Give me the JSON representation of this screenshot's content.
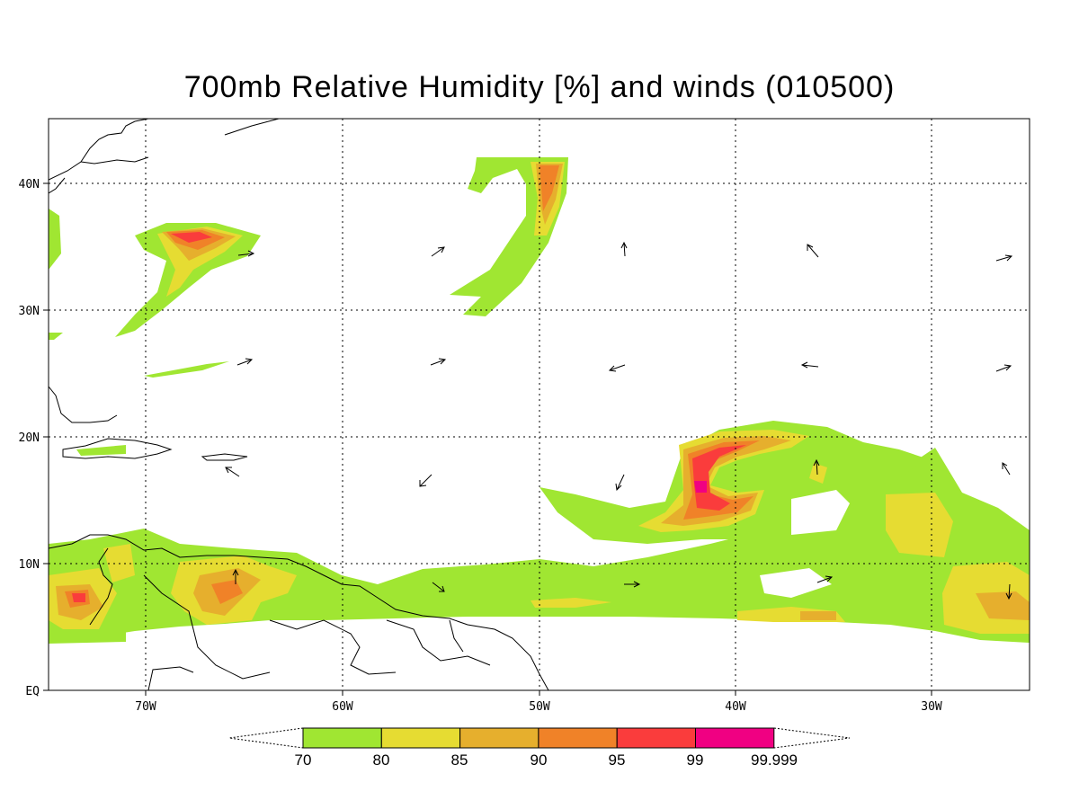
{
  "title": "700mb Relative Humidity [%] and winds (010500)",
  "y_axis": {
    "ticks": [
      "EQ",
      "10N",
      "20N",
      "30N",
      "40N"
    ]
  },
  "x_axis": {
    "ticks": [
      "70W",
      "60W",
      "50W",
      "40W",
      "30W"
    ]
  },
  "colorbar": {
    "levels": [
      "70",
      "80",
      "85",
      "90",
      "95",
      "99",
      "99.999"
    ],
    "colors": [
      "#a0e632",
      "#e6dc32",
      "#e6af2d",
      "#f08228",
      "#fa3c3c",
      "#f00082"
    ]
  },
  "fill_colors": {
    "c70": "#a0e632",
    "c80": "#e6dc32",
    "c85": "#e6af2d",
    "c90": "#f08228",
    "c95": "#fa3c3c",
    "c99": "#f00082"
  }
}
